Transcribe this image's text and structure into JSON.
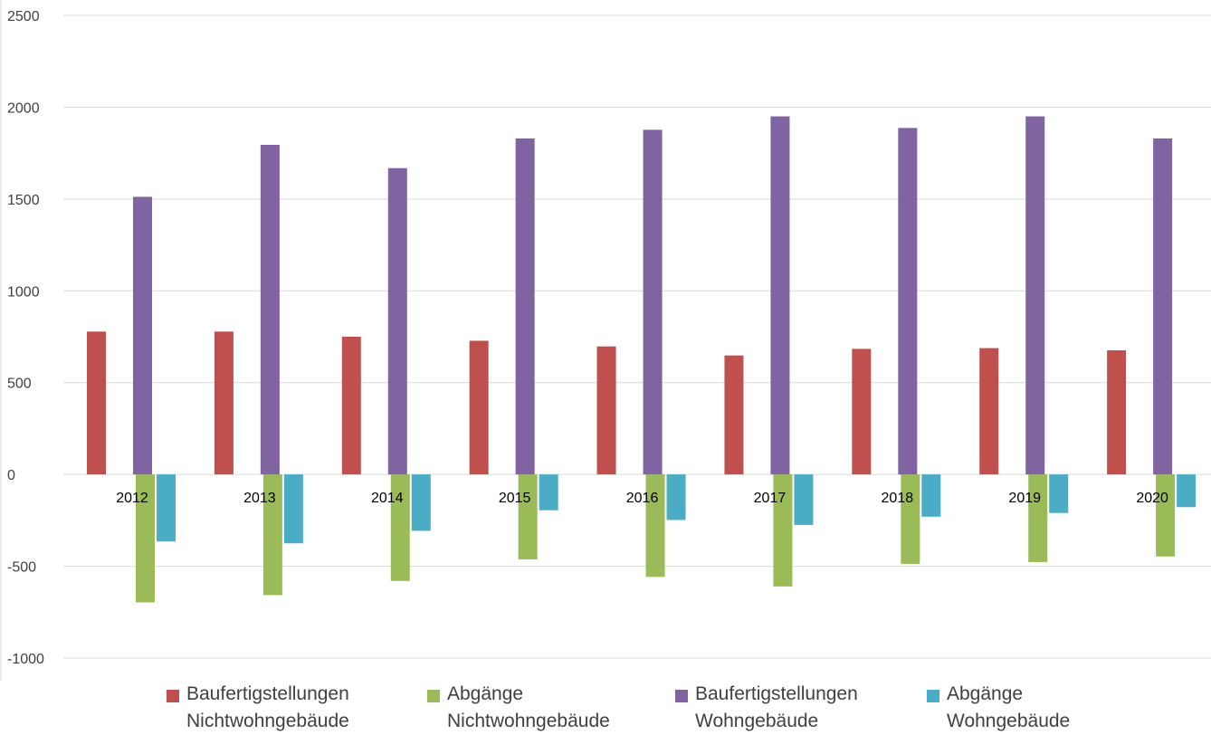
{
  "chart_data": {
    "type": "bar",
    "categories": [
      "2012",
      "2013",
      "2014",
      "2015",
      "2016",
      "2017",
      "2018",
      "2019",
      "2020"
    ],
    "series": [
      {
        "name": "Baufertigstellungen Nichtwohngebäude",
        "color": "#c0504d",
        "values": [
          778,
          778,
          750,
          728,
          697,
          648,
          684,
          688,
          676
        ]
      },
      {
        "name": "Abgänge Nichtwohngebäude",
        "color": "#9bbb59",
        "values": [
          -697,
          -657,
          -580,
          -463,
          -558,
          -610,
          -487,
          -477,
          -447
        ]
      },
      {
        "name": "Baufertigstellungen Wohngebäude",
        "color": "#8064a2",
        "values": [
          1512,
          1795,
          1668,
          1830,
          1877,
          1950,
          1887,
          1950,
          1830
        ]
      },
      {
        "name": "Abgänge Wohngebäude",
        "color": "#4bacc6",
        "values": [
          -365,
          -375,
          -307,
          -195,
          -248,
          -275,
          -230,
          -210,
          -178
        ]
      }
    ],
    "yticks": [
      "-1000",
      "-500",
      "0",
      "500",
      "1000",
      "1500",
      "2000",
      "2500"
    ],
    "ylim": [
      -1000,
      2500
    ],
    "title": "",
    "xlabel": "",
    "ylabel": "",
    "grid": true,
    "legend_position": "bottom"
  },
  "legend": {
    "items": [
      {
        "label": "Baufertigstellungen\nNichtwohngebäude",
        "color": "#c0504d"
      },
      {
        "label": "Abgänge\nNichtwohngebäude",
        "color": "#9bbb59"
      },
      {
        "label": "Baufertigstellungen\nWohngebäude",
        "color": "#8064a2"
      },
      {
        "label": "Abgänge\nWohngebäude",
        "color": "#4bacc6"
      }
    ]
  }
}
